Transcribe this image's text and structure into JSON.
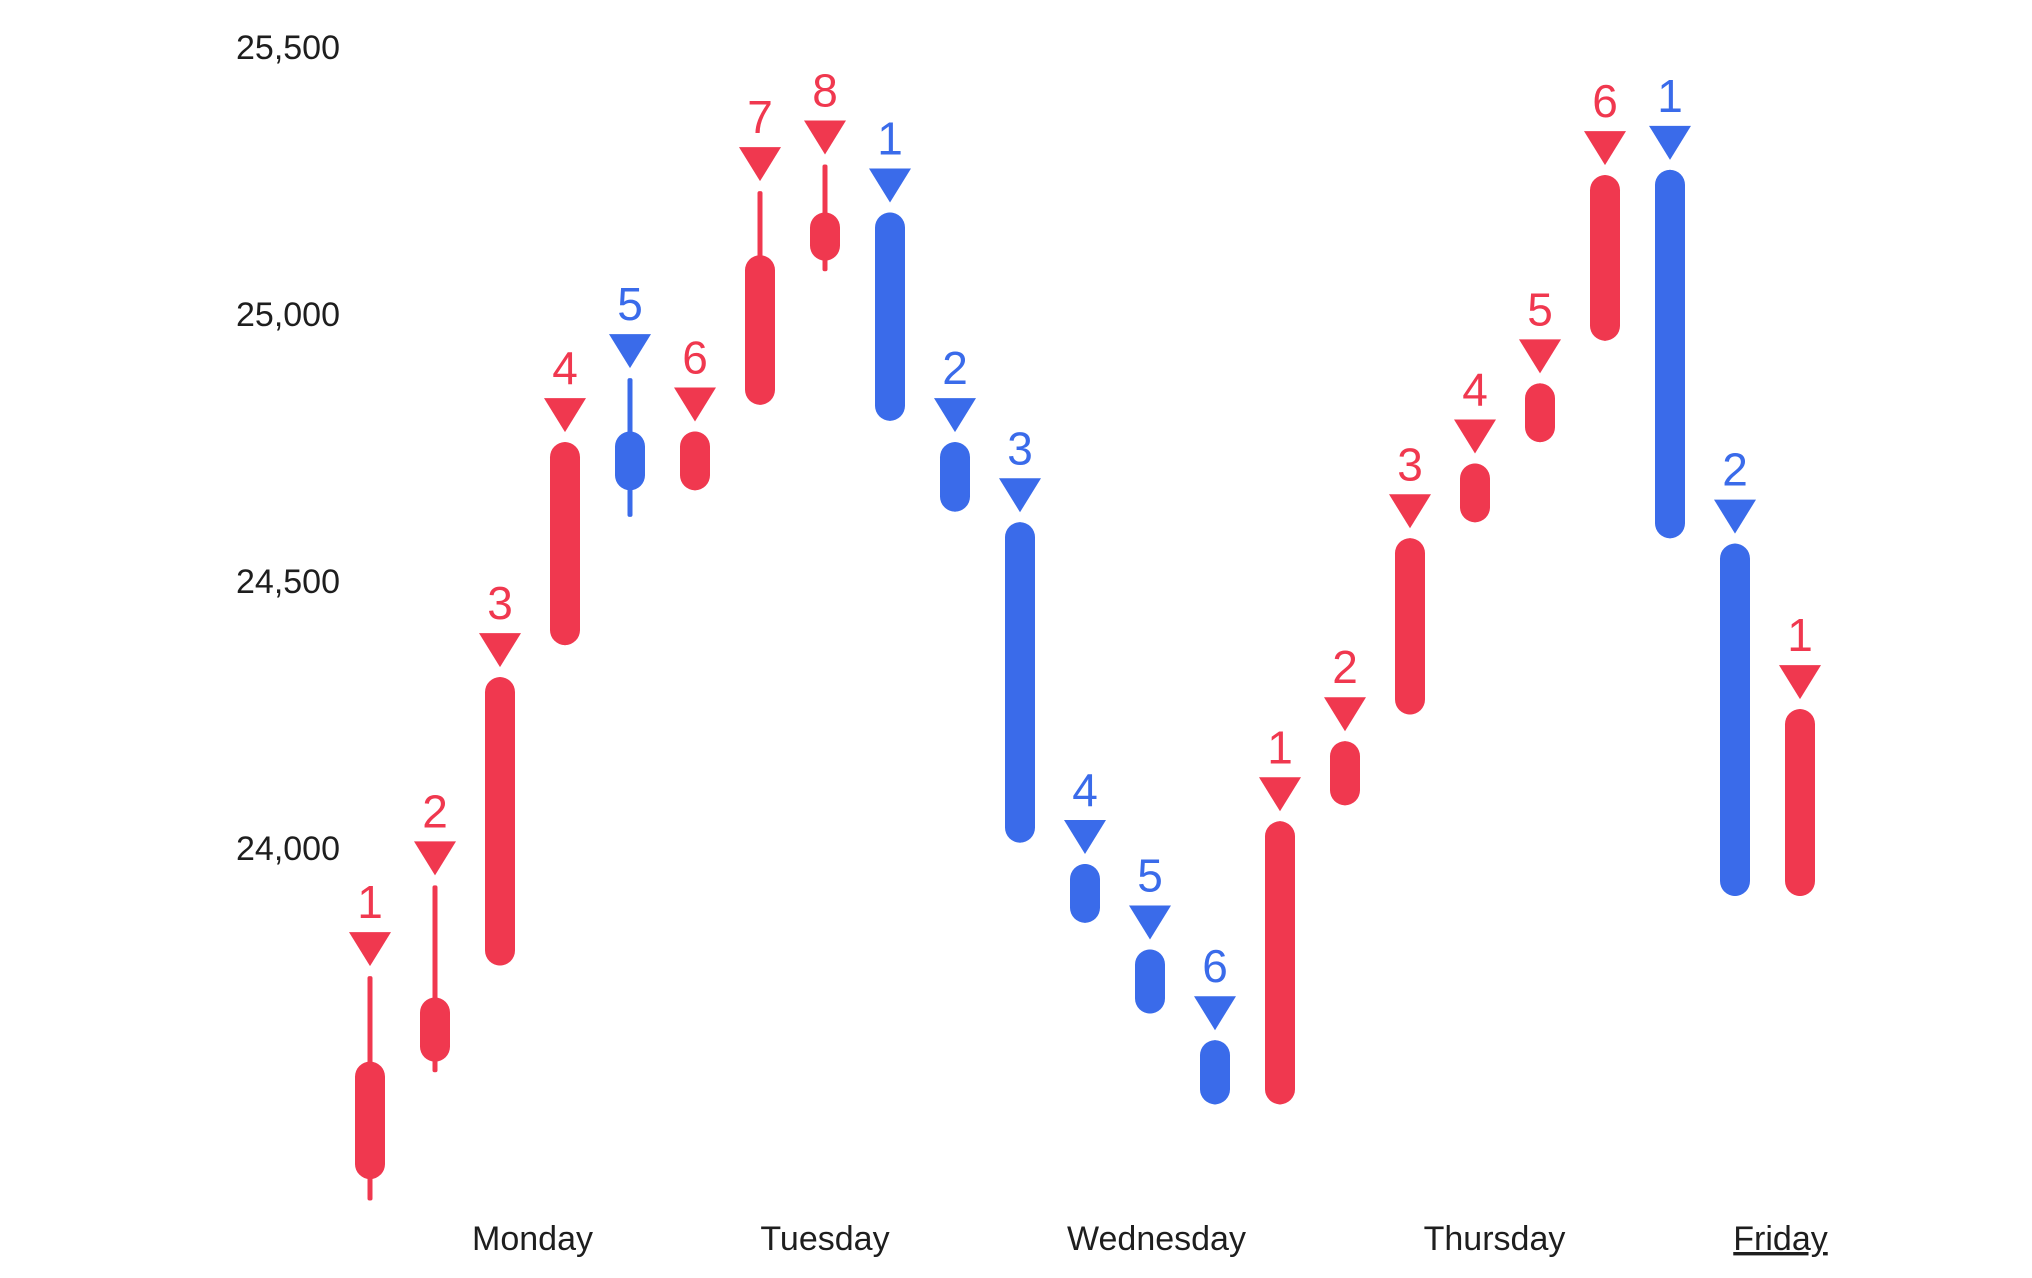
{
  "colors": {
    "up": "#f0384f",
    "down": "#3a6bea",
    "text": "#1e1e1e"
  },
  "chart_data": {
    "type": "candlestick",
    "title": "",
    "xlabel": "",
    "ylabel": "",
    "ylim": [
      23300,
      25600
    ],
    "yticks": [
      {
        "value": 25500,
        "label": "25,500"
      },
      {
        "value": 25000,
        "label": "25,000"
      },
      {
        "value": 24500,
        "label": "24,500"
      },
      {
        "value": 24000,
        "label": "24,000"
      }
    ],
    "days": [
      {
        "label": "Monday",
        "underline": false,
        "center": 2.5
      },
      {
        "label": "Tuesday",
        "underline": false,
        "center": 7
      },
      {
        "label": "Wednesday",
        "underline": false,
        "center": 12.1
      },
      {
        "label": "Thursday",
        "underline": false,
        "center": 17.3
      },
      {
        "label": "Friday",
        "underline": true,
        "center": 21.7
      }
    ],
    "candles": [
      {
        "day": "Monday",
        "count": "1",
        "color": "up",
        "open": 23380,
        "close": 23600,
        "high": 23760,
        "low": 23340
      },
      {
        "day": "Monday",
        "count": "2",
        "color": "up",
        "open": 23600,
        "close": 23720,
        "high": 23930,
        "low": 23580
      },
      {
        "day": "Monday",
        "count": "3",
        "color": "up",
        "open": 23780,
        "close": 24320,
        "high": 24320,
        "low": 23780
      },
      {
        "day": "Monday",
        "count": "4",
        "color": "up",
        "open": 24380,
        "close": 24760,
        "high": 24760,
        "low": 24380
      },
      {
        "day": "Tuesday",
        "count": "5",
        "color": "down",
        "open": 24780,
        "close": 24670,
        "high": 24880,
        "low": 24620
      },
      {
        "day": "Tuesday",
        "count": "6",
        "color": "up",
        "open": 24670,
        "close": 24780,
        "high": 24780,
        "low": 24670
      },
      {
        "day": "Tuesday",
        "count": "7",
        "color": "up",
        "open": 24830,
        "close": 25110,
        "high": 25230,
        "low": 24830
      },
      {
        "day": "Tuesday",
        "count": "8",
        "color": "up",
        "open": 25100,
        "close": 25190,
        "high": 25280,
        "low": 25080
      },
      {
        "day": "Wednesday",
        "count": "1",
        "color": "down",
        "open": 25190,
        "close": 24800,
        "high": 25190,
        "low": 24800
      },
      {
        "day": "Wednesday",
        "count": "2",
        "color": "down",
        "open": 24760,
        "close": 24630,
        "high": 24760,
        "low": 24630
      },
      {
        "day": "Wednesday",
        "count": "3",
        "color": "down",
        "open": 24610,
        "close": 24010,
        "high": 24610,
        "low": 24010
      },
      {
        "day": "Wednesday",
        "count": "4",
        "color": "down",
        "open": 23970,
        "close": 23860,
        "high": 23970,
        "low": 23860
      },
      {
        "day": "Wednesday",
        "count": "5",
        "color": "down",
        "open": 23810,
        "close": 23690,
        "high": 23810,
        "low": 23690
      },
      {
        "day": "Wednesday",
        "count": "6",
        "color": "down",
        "open": 23640,
        "close": 23520,
        "high": 23640,
        "low": 23520
      },
      {
        "day": "Thursday",
        "count": "1",
        "color": "up",
        "open": 23520,
        "close": 24050,
        "high": 24050,
        "low": 23520
      },
      {
        "day": "Thursday",
        "count": "2",
        "color": "up",
        "open": 24080,
        "close": 24200,
        "high": 24200,
        "low": 24080
      },
      {
        "day": "Thursday",
        "count": "3",
        "color": "up",
        "open": 24250,
        "close": 24580,
        "high": 24580,
        "low": 24250
      },
      {
        "day": "Thursday",
        "count": "4",
        "color": "up",
        "open": 24610,
        "close": 24720,
        "high": 24720,
        "low": 24610
      },
      {
        "day": "Thursday",
        "count": "5",
        "color": "up",
        "open": 24760,
        "close": 24870,
        "high": 24870,
        "low": 24760
      },
      {
        "day": "Friday",
        "count": "6",
        "color": "up",
        "open": 24950,
        "close": 25260,
        "high": 25260,
        "low": 24950
      },
      {
        "day": "Friday",
        "count": "1",
        "color": "down",
        "open": 25270,
        "close": 24580,
        "high": 25270,
        "low": 24580
      },
      {
        "day": "Friday",
        "count": "2",
        "color": "down",
        "open": 24570,
        "close": 23910,
        "high": 24570,
        "low": 23910
      },
      {
        "day": "Friday",
        "count": "1",
        "color": "up",
        "open": 23910,
        "close": 24260,
        "high": 24260,
        "low": 23910
      }
    ]
  }
}
